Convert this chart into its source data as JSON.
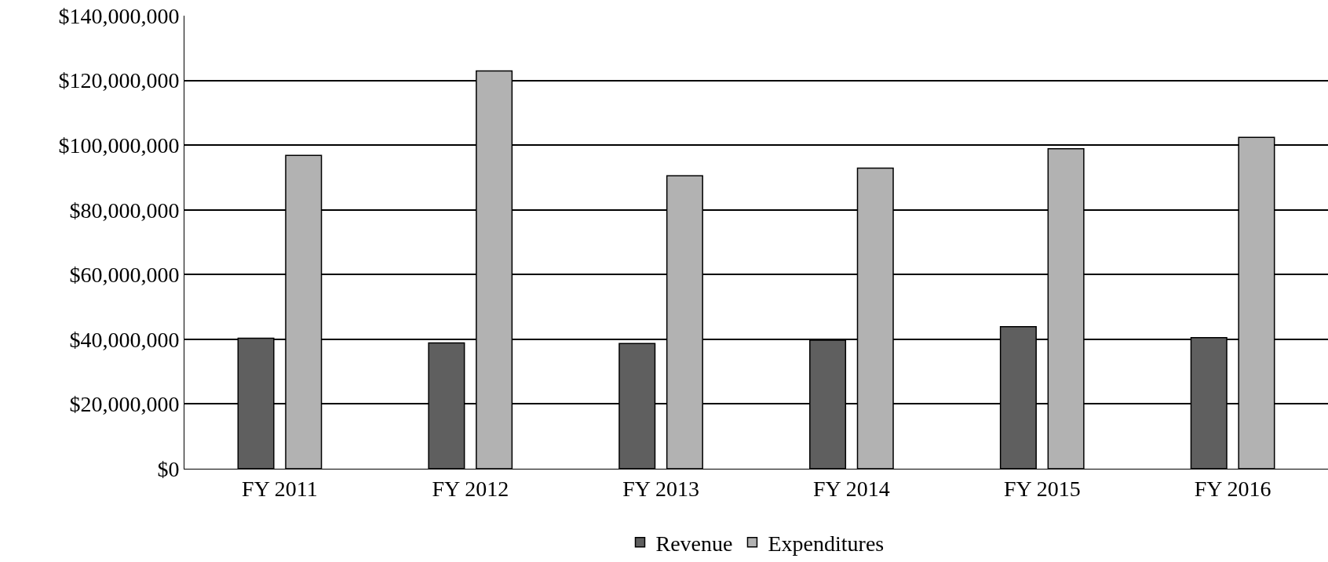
{
  "chart_data": {
    "type": "bar",
    "categories": [
      "FY 2011",
      "FY 2012",
      "FY 2013",
      "FY 2014",
      "FY 2015",
      "FY 2016"
    ],
    "series": [
      {
        "name": "Revenue",
        "color": "#5f5f5f",
        "values": [
          40300000,
          38900000,
          38700000,
          39700000,
          43900000,
          40500000
        ]
      },
      {
        "name": "Expenditures",
        "color": "#b2b2b2",
        "values": [
          96800000,
          122900000,
          90500000,
          92900000,
          98900000,
          102400000
        ]
      }
    ],
    "ylim": [
      0,
      140000000
    ],
    "yticks": [
      {
        "value": 0,
        "label": "$0"
      },
      {
        "value": 20000000,
        "label": "$20,000,000"
      },
      {
        "value": 40000000,
        "label": "$40,000,000"
      },
      {
        "value": 60000000,
        "label": "$60,000,000"
      },
      {
        "value": 80000000,
        "label": "$80,000,000"
      },
      {
        "value": 100000000,
        "label": "$100,000,000"
      },
      {
        "value": 120000000,
        "label": "$120,000,000"
      },
      {
        "value": 140000000,
        "label": "$140,000,000"
      }
    ],
    "grid": "y",
    "legend": "bottom"
  }
}
